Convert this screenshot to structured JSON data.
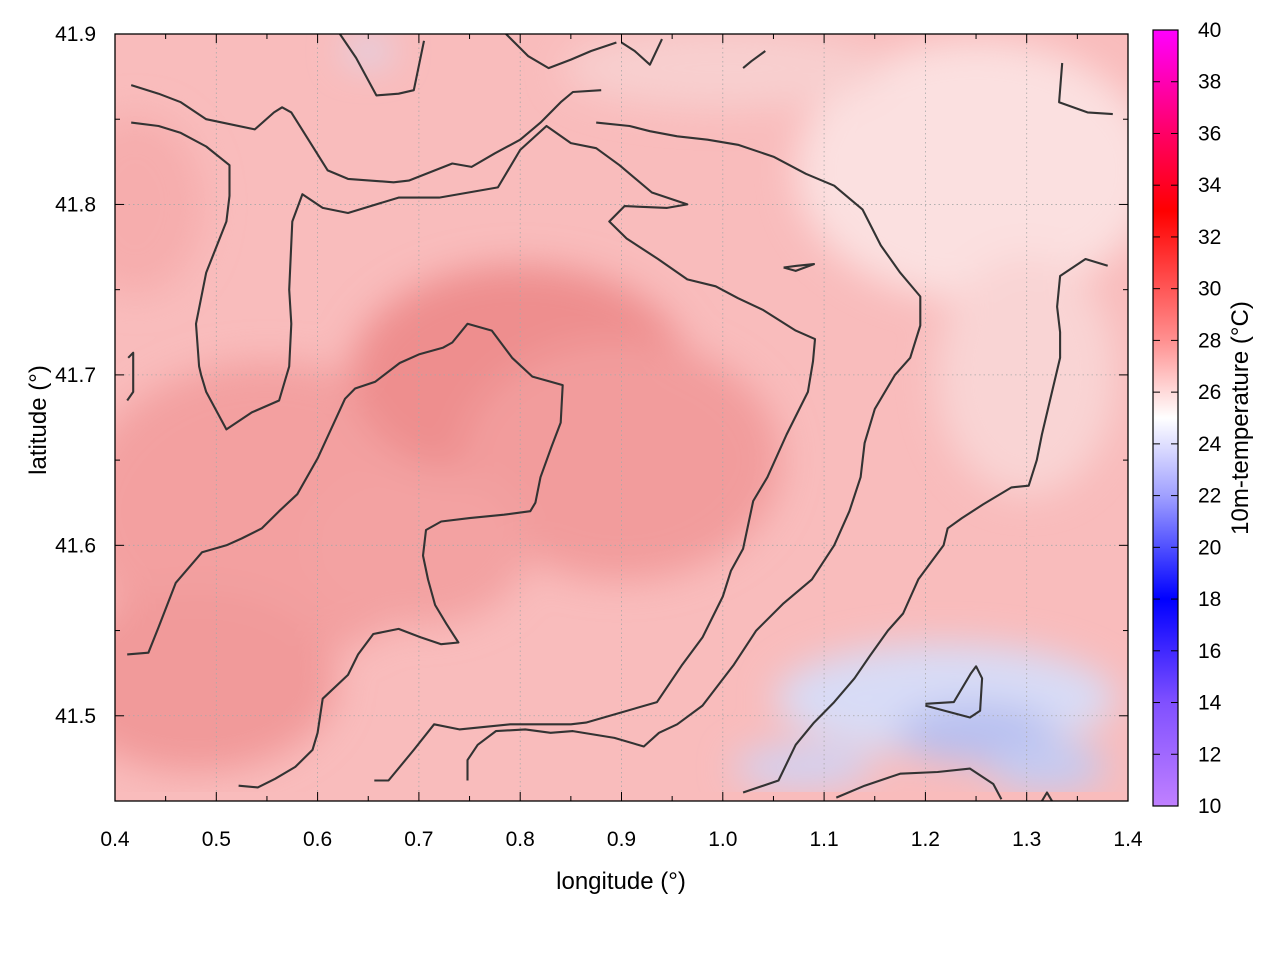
{
  "chart_data": {
    "type": "heatmap",
    "title": "",
    "xlabel": "longitude (°)",
    "ylabel": "latitude (°)",
    "colorbar_label": "10m-temperature (°C)",
    "xlim": [
      0.4,
      1.4
    ],
    "ylim": [
      41.45,
      41.9
    ],
    "x_ticks": [
      "0.4",
      "0.5",
      "0.6",
      "0.7",
      "0.8",
      "0.9",
      "1.0",
      "1.1",
      "1.2",
      "1.3",
      "1.4"
    ],
    "y_ticks": [
      "41.5",
      "41.6",
      "41.7",
      "41.8",
      "41.9"
    ],
    "y_tick_values": [
      41.5,
      41.6,
      41.7,
      41.8,
      41.9
    ],
    "colorbar_range": [
      10,
      40
    ],
    "colorbar_ticks": [
      "10",
      "12",
      "14",
      "16",
      "18",
      "20",
      "22",
      "24",
      "26",
      "28",
      "30",
      "32",
      "34",
      "36",
      "38",
      "40"
    ],
    "colormap": [
      {
        "value": 10,
        "color": "#c080ff"
      },
      {
        "value": 14,
        "color": "#8050ff"
      },
      {
        "value": 18,
        "color": "#0000ff"
      },
      {
        "value": 22,
        "color": "#a0a0ff"
      },
      {
        "value": 25,
        "color": "#ffffff"
      },
      {
        "value": 28,
        "color": "#ff9090"
      },
      {
        "value": 33,
        "color": "#ff0000"
      },
      {
        "value": 36,
        "color": "#ff0066"
      },
      {
        "value": 40,
        "color": "#ff00ff"
      }
    ],
    "grid": true,
    "contour_color": "#333333",
    "contours": [
      {
        "name": "",
        "points": [
          [
            0.416,
            41.87
          ],
          [
            0.443,
            41.865
          ],
          [
            0.465,
            41.86
          ],
          [
            0.49,
            41.85
          ],
          [
            0.538,
            41.844
          ],
          [
            0.557,
            41.854
          ],
          [
            0.565,
            41.857
          ],
          [
            0.574,
            41.854
          ],
          [
            0.61,
            41.82
          ],
          [
            0.63,
            41.815
          ],
          [
            0.675,
            41.813
          ],
          [
            0.69,
            41.814
          ],
          [
            0.733,
            41.824
          ],
          [
            0.752,
            41.822
          ],
          [
            0.775,
            41.83
          ],
          [
            0.8,
            41.838
          ],
          [
            0.82,
            41.848
          ],
          [
            0.84,
            41.86
          ],
          [
            0.852,
            41.866
          ],
          [
            0.88,
            41.867
          ]
        ]
      },
      {
        "name": "",
        "points": [
          [
            0.416,
            41.848
          ],
          [
            0.443,
            41.846
          ],
          [
            0.465,
            41.842
          ],
          [
            0.49,
            41.834
          ],
          [
            0.513,
            41.823
          ],
          [
            0.513,
            41.805
          ],
          [
            0.51,
            41.79
          ],
          [
            0.49,
            41.76
          ],
          [
            0.48,
            41.73
          ],
          [
            0.483,
            41.705
          ],
          [
            0.485,
            41.7
          ],
          [
            0.49,
            41.69
          ],
          [
            0.51,
            41.668
          ],
          [
            0.535,
            41.678
          ],
          [
            0.562,
            41.685
          ],
          [
            0.572,
            41.705
          ],
          [
            0.574,
            41.73
          ],
          [
            0.572,
            41.75
          ],
          [
            0.575,
            41.79
          ],
          [
            0.585,
            41.806
          ],
          [
            0.605,
            41.798
          ],
          [
            0.63,
            41.795
          ],
          [
            0.68,
            41.804
          ],
          [
            0.72,
            41.804
          ],
          [
            0.778,
            41.81
          ],
          [
            0.8,
            41.832
          ],
          [
            0.826,
            41.846
          ],
          [
            0.85,
            41.836
          ],
          [
            0.875,
            41.833
          ],
          [
            0.898,
            41.823
          ],
          [
            0.93,
            41.807
          ],
          [
            0.965,
            41.8
          ],
          [
            0.945,
            41.798
          ],
          [
            0.903,
            41.799
          ],
          [
            0.888,
            41.79
          ],
          [
            0.905,
            41.78
          ],
          [
            0.936,
            41.768
          ],
          [
            0.965,
            41.756
          ],
          [
            0.993,
            41.752
          ],
          [
            1.015,
            41.745
          ],
          [
            1.04,
            41.738
          ],
          [
            1.072,
            41.726
          ],
          [
            1.091,
            41.721
          ],
          [
            1.089,
            41.708
          ],
          [
            1.084,
            41.69
          ],
          [
            1.063,
            41.665
          ],
          [
            1.044,
            41.64
          ],
          [
            1.03,
            41.626
          ],
          [
            1.02,
            41.598
          ],
          [
            1.008,
            41.585
          ],
          [
            1.0,
            41.57
          ],
          [
            0.98,
            41.546
          ],
          [
            0.96,
            41.53
          ],
          [
            0.935,
            41.508
          ],
          [
            0.865,
            41.496
          ],
          [
            0.85,
            41.495
          ],
          [
            0.79,
            41.495
          ],
          [
            0.74,
            41.492
          ],
          [
            0.715,
            41.495
          ],
          [
            0.695,
            41.48
          ],
          [
            0.67,
            41.462
          ],
          [
            0.656,
            41.462
          ]
        ]
      },
      {
        "name": "",
        "points": [
          [
            0.412,
            41.536
          ],
          [
            0.433,
            41.537
          ],
          [
            0.443,
            41.552
          ],
          [
            0.46,
            41.578
          ],
          [
            0.486,
            41.596
          ],
          [
            0.51,
            41.6
          ],
          [
            0.525,
            41.604
          ],
          [
            0.545,
            41.61
          ],
          [
            0.562,
            41.62
          ],
          [
            0.58,
            41.63
          ],
          [
            0.6,
            41.651
          ],
          [
            0.627,
            41.686
          ],
          [
            0.637,
            41.692
          ],
          [
            0.657,
            41.696
          ],
          [
            0.681,
            41.707
          ],
          [
            0.7,
            41.712
          ],
          [
            0.724,
            41.716
          ],
          [
            0.733,
            41.719
          ],
          [
            0.748,
            41.73
          ],
          [
            0.772,
            41.726
          ],
          [
            0.792,
            41.71
          ],
          [
            0.812,
            41.699
          ],
          [
            0.842,
            41.694
          ],
          [
            0.84,
            41.672
          ],
          [
            0.831,
            41.658
          ],
          [
            0.82,
            41.64
          ],
          [
            0.815,
            41.625
          ],
          [
            0.81,
            41.62
          ],
          [
            0.784,
            41.618
          ],
          [
            0.75,
            41.616
          ],
          [
            0.722,
            41.614
          ],
          [
            0.707,
            41.609
          ],
          [
            0.704,
            41.594
          ],
          [
            0.709,
            41.58
          ],
          [
            0.716,
            41.565
          ],
          [
            0.727,
            41.554
          ],
          [
            0.739,
            41.543
          ],
          [
            0.722,
            41.542
          ],
          [
            0.702,
            41.546
          ],
          [
            0.68,
            41.551
          ],
          [
            0.655,
            41.548
          ],
          [
            0.64,
            41.536
          ],
          [
            0.63,
            41.524
          ],
          [
            0.605,
            41.51
          ],
          [
            0.6,
            41.49
          ],
          [
            0.595,
            41.48
          ],
          [
            0.578,
            41.47
          ],
          [
            0.558,
            41.463
          ],
          [
            0.541,
            41.458
          ],
          [
            0.522,
            41.459
          ]
        ]
      },
      {
        "name": "",
        "points": [
          [
            0.622,
            41.9
          ],
          [
            0.638,
            41.886
          ],
          [
            0.658,
            41.864
          ],
          [
            0.68,
            41.865
          ],
          [
            0.695,
            41.867
          ],
          [
            0.705,
            41.896
          ]
        ]
      },
      {
        "name": "",
        "points": [
          [
            0.786,
            41.9
          ],
          [
            0.808,
            41.887
          ],
          [
            0.828,
            41.88
          ],
          [
            0.85,
            41.885
          ],
          [
            0.87,
            41.89
          ],
          [
            0.895,
            41.895
          ]
        ]
      },
      {
        "name": "",
        "points": [
          [
            0.9,
            41.895
          ],
          [
            0.913,
            41.89
          ],
          [
            0.928,
            41.882
          ],
          [
            0.94,
            41.897
          ]
        ]
      },
      {
        "name": "",
        "points": [
          [
            1.02,
            41.88
          ],
          [
            1.028,
            41.884
          ],
          [
            1.042,
            41.89
          ]
        ]
      },
      {
        "name": "",
        "points": [
          [
            0.875,
            41.848
          ],
          [
            0.908,
            41.846
          ],
          [
            0.928,
            41.843
          ],
          [
            0.955,
            41.84
          ],
          [
            0.985,
            41.838
          ],
          [
            1.015,
            41.835
          ],
          [
            1.05,
            41.828
          ],
          [
            1.082,
            41.818
          ],
          [
            1.11,
            41.811
          ],
          [
            1.138,
            41.797
          ],
          [
            1.156,
            41.776
          ],
          [
            1.175,
            41.76
          ],
          [
            1.195,
            41.746
          ],
          [
            1.195,
            41.729
          ],
          [
            1.185,
            41.71
          ],
          [
            1.17,
            41.7
          ],
          [
            1.15,
            41.68
          ],
          [
            1.14,
            41.66
          ],
          [
            1.136,
            41.64
          ],
          [
            1.125,
            41.62
          ],
          [
            1.11,
            41.6
          ],
          [
            1.088,
            41.58
          ],
          [
            1.06,
            41.566
          ],
          [
            1.033,
            41.55
          ],
          [
            1.011,
            41.53
          ],
          [
            0.98,
            41.506
          ],
          [
            0.955,
            41.495
          ],
          [
            0.937,
            41.49
          ],
          [
            0.922,
            41.482
          ],
          [
            0.893,
            41.487
          ],
          [
            0.852,
            41.491
          ],
          [
            0.83,
            41.49
          ],
          [
            0.805,
            41.492
          ],
          [
            0.776,
            41.491
          ],
          [
            0.758,
            41.483
          ],
          [
            0.748,
            41.474
          ],
          [
            0.748,
            41.462
          ]
        ]
      },
      {
        "name": "",
        "points": [
          [
            1.06,
            41.763
          ],
          [
            1.073,
            41.764
          ],
          [
            1.09,
            41.765
          ],
          [
            1.072,
            41.761
          ],
          [
            1.06,
            41.763
          ]
        ]
      },
      {
        "name": "",
        "points": [
          [
            1.335,
            41.883
          ],
          [
            1.332,
            41.86
          ],
          [
            1.36,
            41.854
          ],
          [
            1.385,
            41.853
          ]
        ]
      },
      {
        "name": "",
        "points": [
          [
            1.38,
            41.764
          ],
          [
            1.358,
            41.768
          ],
          [
            1.333,
            41.758
          ],
          [
            1.33,
            41.74
          ],
          [
            1.333,
            41.725
          ],
          [
            1.333,
            41.71
          ],
          [
            1.325,
            41.69
          ],
          [
            1.315,
            41.665
          ],
          [
            1.31,
            41.65
          ],
          [
            1.302,
            41.635
          ],
          [
            1.285,
            41.634
          ],
          [
            1.257,
            41.624
          ],
          [
            1.236,
            41.616
          ],
          [
            1.222,
            41.61
          ],
          [
            1.218,
            41.6
          ],
          [
            1.193,
            41.58
          ],
          [
            1.178,
            41.56
          ],
          [
            1.163,
            41.55
          ],
          [
            1.145,
            41.535
          ],
          [
            1.13,
            41.522
          ],
          [
            1.11,
            41.508
          ],
          [
            1.09,
            41.496
          ],
          [
            1.072,
            41.483
          ],
          [
            1.055,
            41.462
          ],
          [
            1.02,
            41.455
          ]
        ]
      },
      {
        "name": "",
        "points": [
          [
            1.2,
            41.507
          ],
          [
            1.228,
            41.508
          ],
          [
            1.245,
            41.525
          ],
          [
            1.25,
            41.529
          ],
          [
            1.256,
            41.522
          ],
          [
            1.254,
            41.503
          ],
          [
            1.244,
            41.499
          ],
          [
            1.2,
            41.506
          ]
        ]
      },
      {
        "name": "",
        "points": [
          [
            1.112,
            41.452
          ],
          [
            1.14,
            41.459
          ],
          [
            1.175,
            41.466
          ],
          [
            1.212,
            41.467
          ],
          [
            1.244,
            41.469
          ],
          [
            1.267,
            41.46
          ],
          [
            1.275,
            41.451
          ]
        ]
      },
      {
        "name": "",
        "points": [
          [
            1.315,
            41.45
          ],
          [
            1.32,
            41.455
          ],
          [
            1.325,
            41.45
          ]
        ]
      },
      {
        "name": "",
        "points": [
          [
            0.413,
            41.71
          ],
          [
            0.418,
            41.713
          ],
          [
            0.418,
            41.69
          ],
          [
            0.412,
            41.685
          ]
        ]
      }
    ]
  }
}
